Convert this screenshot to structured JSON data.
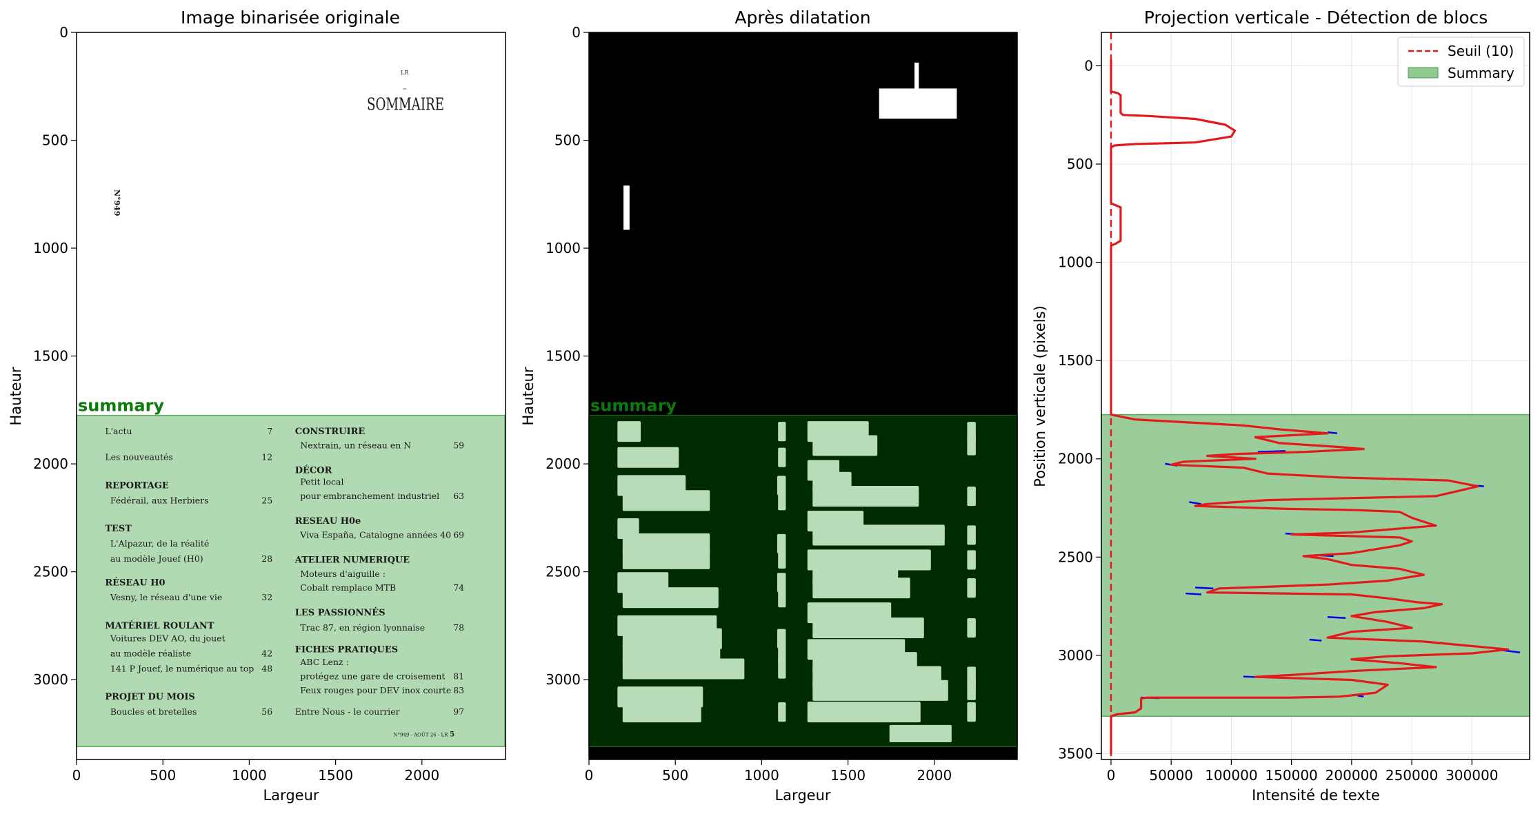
{
  "chart_data": [
    {
      "type": "image",
      "title": "Image binarisée originale",
      "xlabel": "Largeur",
      "ylabel": "Hauteur",
      "xlim": [
        0,
        2480
      ],
      "ylim": [
        3370,
        0
      ],
      "xticks": [
        0,
        500,
        1000,
        1500,
        2000
      ],
      "yticks": [
        0,
        500,
        1000,
        1500,
        2000,
        2500,
        3000
      ],
      "region": {
        "label": "summary",
        "y_start": 1775,
        "y_end": 3310
      },
      "document": {
        "header_small": "LR",
        "heading": "SOMMAIRE",
        "issue_vertical": "N°949",
        "footer": "N°949 - AOÛT 26 - LR",
        "footer_page": "5",
        "left_column": [
          {
            "text": "L'actu",
            "page": "7",
            "bold": false,
            "indent": false
          },
          {
            "text": "Les nouveautés",
            "page": "12",
            "bold": false,
            "indent": false
          },
          {
            "text": "REPORTAGE",
            "page": "",
            "bold": true,
            "indent": false
          },
          {
            "text": "Fédérail, aux Herbiers",
            "page": "25",
            "bold": false,
            "indent": true
          },
          {
            "text": "TEST",
            "page": "",
            "bold": true,
            "indent": false
          },
          {
            "text": "L'Alpazur, de la réalité",
            "page": "",
            "bold": false,
            "indent": true
          },
          {
            "text": "au modèle Jouef (H0)",
            "page": "28",
            "bold": false,
            "indent": true
          },
          {
            "text": "RÉSEAU H0",
            "page": "",
            "bold": true,
            "indent": false
          },
          {
            "text": "Vesny, le réseau d'une vie",
            "page": "32",
            "bold": false,
            "indent": true
          },
          {
            "text": "MATÉRIEL ROULANT",
            "page": "",
            "bold": true,
            "indent": false
          },
          {
            "text": "Voitures DEV AO, du jouet",
            "page": "",
            "bold": false,
            "indent": true
          },
          {
            "text": "au modèle réaliste",
            "page": "42",
            "bold": false,
            "indent": true
          },
          {
            "text": "141 P Jouef, le numérique au top",
            "page": "48",
            "bold": false,
            "indent": true
          },
          {
            "text": "PROJET DU MOIS",
            "page": "",
            "bold": true,
            "indent": false
          },
          {
            "text": "Boucles et bretelles",
            "page": "56",
            "bold": false,
            "indent": true
          }
        ],
        "right_column": [
          {
            "text": "CONSTRUIRE",
            "page": "",
            "bold": true,
            "indent": false
          },
          {
            "text": "Nextrain, un réseau en N",
            "page": "59",
            "bold": false,
            "indent": true
          },
          {
            "text": "DÉCOR",
            "page": "",
            "bold": true,
            "indent": false
          },
          {
            "text": "Petit local",
            "page": "",
            "bold": false,
            "indent": true
          },
          {
            "text": "pour embranchement industriel",
            "page": "63",
            "bold": false,
            "indent": true
          },
          {
            "text": "RESEAU H0e",
            "page": "",
            "bold": true,
            "indent": false
          },
          {
            "text": "Viva España, Catalogne années 40",
            "page": "69",
            "bold": false,
            "indent": true
          },
          {
            "text": "ATELIER NUMERIQUE",
            "page": "",
            "bold": true,
            "indent": false
          },
          {
            "text": "Moteurs d'aiguille :",
            "page": "",
            "bold": false,
            "indent": true
          },
          {
            "text": "Cobalt remplace MTB",
            "page": "74",
            "bold": false,
            "indent": true
          },
          {
            "text": "LES PASSIONNÉS",
            "page": "",
            "bold": true,
            "indent": false
          },
          {
            "text": "Trac 87, en région lyonnaise",
            "page": "78",
            "bold": false,
            "indent": true
          },
          {
            "text": "FICHES PRATIQUES",
            "page": "",
            "bold": true,
            "indent": false
          },
          {
            "text": "ABC Lenz :",
            "page": "",
            "bold": false,
            "indent": true
          },
          {
            "text": "protégez une gare de croisement",
            "page": "81",
            "bold": false,
            "indent": true
          },
          {
            "text": "Feux rouges pour DEV inox courte",
            "page": "83",
            "bold": false,
            "indent": true
          },
          {
            "text": "Entre Nous - le courrier",
            "page": "97",
            "bold": false,
            "indent": false
          }
        ]
      }
    },
    {
      "type": "image",
      "title": "Après dilatation",
      "xlabel": "Largeur",
      "ylabel": "Hauteur",
      "xlim": [
        0,
        2480
      ],
      "ylim": [
        3370,
        0
      ],
      "xticks": [
        0,
        500,
        1000,
        1500,
        2000
      ],
      "yticks": [
        0,
        500,
        1000,
        1500,
        2000,
        2500,
        3000
      ],
      "region": {
        "label": "summary",
        "y_start": 1775,
        "y_end": 3310
      }
    },
    {
      "type": "line",
      "title": "Projection verticale - Détection de blocs",
      "xlabel": "Intensité de texte",
      "ylabel": "Position verticale (pixels)",
      "xlim": [
        -8000,
        348000
      ],
      "ylim": [
        3530,
        -170
      ],
      "xticks": [
        0,
        50000,
        100000,
        150000,
        200000,
        250000,
        300000
      ],
      "yticks": [
        0,
        500,
        1000,
        1500,
        2000,
        2500,
        3000,
        3500
      ],
      "grid": true,
      "legend": {
        "position": "top-right",
        "entries": [
          "Seuil (10)",
          "Summary"
        ]
      },
      "threshold": {
        "label": "Seuil (10)",
        "x": 10,
        "color": "#e31a1c"
      },
      "summary_block": {
        "label": "Summary",
        "y_start": 1775,
        "y_end": 3310
      },
      "series": [
        {
          "color": "#e31a1c",
          "points": [
            [
              0,
              -30
            ],
            [
              0,
              130
            ],
            [
              3000,
              135
            ],
            [
              6000,
              140
            ],
            [
              8000,
              150
            ],
            [
              8000,
              240
            ],
            [
              10000,
              250
            ],
            [
              30000,
              255
            ],
            [
              70000,
              270
            ],
            [
              95000,
              300
            ],
            [
              103000,
              330
            ],
            [
              100000,
              360
            ],
            [
              70000,
              390
            ],
            [
              20000,
              398
            ],
            [
              3000,
              405
            ],
            [
              0,
              415
            ],
            [
              0,
              700
            ],
            [
              4000,
              710
            ],
            [
              8000,
              720
            ],
            [
              8000,
              890
            ],
            [
              4000,
              905
            ],
            [
              0,
              915
            ],
            [
              0,
              1775
            ],
            [
              20000,
              1800
            ],
            [
              80000,
              1820
            ],
            [
              110000,
              1830
            ],
            [
              140000,
              1850
            ],
            [
              180000,
              1870
            ],
            [
              150000,
              1880
            ],
            [
              120000,
              1890
            ],
            [
              140000,
              1920
            ],
            [
              190000,
              1940
            ],
            [
              210000,
              1950
            ],
            [
              160000,
              1965
            ],
            [
              105000,
              1975
            ],
            [
              80000,
              1985
            ],
            [
              120000,
              2000
            ],
            [
              60000,
              2015
            ],
            [
              50000,
              2030
            ],
            [
              110000,
              2045
            ],
            [
              130000,
              2075
            ],
            [
              190000,
              2095
            ],
            [
              280000,
              2110
            ],
            [
              305000,
              2140
            ],
            [
              270000,
              2190
            ],
            [
              130000,
              2210
            ],
            [
              80000,
              2230
            ],
            [
              70000,
              2240
            ],
            [
              150000,
              2255
            ],
            [
              200000,
              2260
            ],
            [
              240000,
              2270
            ],
            [
              250000,
              2300
            ],
            [
              260000,
              2320
            ],
            [
              270000,
              2340
            ],
            [
              230000,
              2360
            ],
            [
              200000,
              2375
            ],
            [
              150000,
              2385
            ],
            [
              240000,
              2400
            ],
            [
              250000,
              2420
            ],
            [
              240000,
              2440
            ],
            [
              220000,
              2460
            ],
            [
              200000,
              2480
            ],
            [
              160000,
              2495
            ],
            [
              180000,
              2510
            ],
            [
              200000,
              2540
            ],
            [
              240000,
              2560
            ],
            [
              260000,
              2590
            ],
            [
              230000,
              2620
            ],
            [
              180000,
              2640
            ],
            [
              90000,
              2660
            ],
            [
              80000,
              2680
            ],
            [
              200000,
              2690
            ],
            [
              230000,
              2710
            ],
            [
              255000,
              2730
            ],
            [
              275000,
              2740
            ],
            [
              260000,
              2760
            ],
            [
              220000,
              2780
            ],
            [
              200000,
              2800
            ],
            [
              230000,
              2830
            ],
            [
              250000,
              2860
            ],
            [
              200000,
              2880
            ],
            [
              180000,
              2910
            ],
            [
              260000,
              2930
            ],
            [
              295000,
              2950
            ],
            [
              330000,
              2970
            ],
            [
              300000,
              2990
            ],
            [
              230000,
              3005
            ],
            [
              200000,
              3020
            ],
            [
              240000,
              3040
            ],
            [
              270000,
              3060
            ],
            [
              200000,
              3080
            ],
            [
              150000,
              3100
            ],
            [
              120000,
              3110
            ],
            [
              200000,
              3125
            ],
            [
              230000,
              3150
            ],
            [
              220000,
              3190
            ],
            [
              190000,
              3210
            ],
            [
              150000,
              3215
            ],
            [
              30000,
              3215
            ],
            [
              25000,
              3220
            ],
            [
              25000,
              3270
            ],
            [
              20000,
              3290
            ],
            [
              5000,
              3300
            ],
            [
              0,
              3310
            ],
            [
              0,
              3500
            ]
          ]
        },
        {
          "color": "#0000ee",
          "segments": [
            [
              [
                180000,
                1865
              ],
              [
                188000,
                1870
              ]
            ],
            [
              [
                145000,
                1960
              ],
              [
                122000,
                1965
              ]
            ],
            [
              [
                45000,
                2025
              ],
              [
                55000,
                2035
              ]
            ],
            [
              [
                300000,
                2135
              ],
              [
                310000,
                2140
              ]
            ],
            [
              [
                65000,
                2220
              ],
              [
                75000,
                2230
              ]
            ],
            [
              [
                145000,
                2380
              ],
              [
                160000,
                2385
              ]
            ],
            [
              [
                170000,
                2490
              ],
              [
                185000,
                2495
              ]
            ],
            [
              [
                70000,
                2655
              ],
              [
                85000,
                2660
              ]
            ],
            [
              [
                62000,
                2685
              ],
              [
                75000,
                2690
              ]
            ],
            [
              [
                180000,
                2805
              ],
              [
                195000,
                2810
              ]
            ],
            [
              [
                165000,
                2920
              ],
              [
                175000,
                2925
              ]
            ],
            [
              [
                320000,
                2970
              ],
              [
                340000,
                2985
              ]
            ],
            [
              [
                110000,
                3108
              ],
              [
                125000,
                3112
              ]
            ],
            [
              [
                25000,
                3215
              ],
              [
                40000,
                3218
              ]
            ],
            [
              [
                205000,
                3205
              ],
              [
                210000,
                3210
              ]
            ]
          ]
        }
      ]
    }
  ]
}
